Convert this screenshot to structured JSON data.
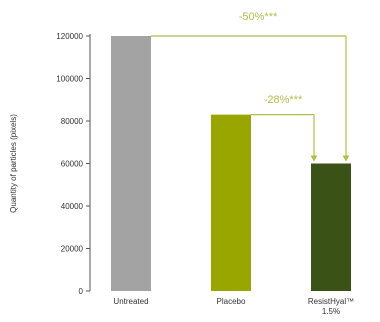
{
  "chart_data": {
    "type": "bar",
    "ylabel": "Quantity of particles (pixels)",
    "ylim": [
      0,
      120000
    ],
    "yticks": [
      0,
      20000,
      40000,
      60000,
      80000,
      100000,
      120000
    ],
    "categories": [
      "Untreated",
      "Placebo",
      "ResistHyal™ 1.5%"
    ],
    "values": [
      120000,
      83000,
      60000
    ],
    "colors": [
      "#a3a3a3",
      "#99a600",
      "#3b5217"
    ],
    "grid": false,
    "annotations": [
      {
        "text": "-50%***",
        "from_category": 0,
        "to_category": 2,
        "color": "#b4bc4a"
      },
      {
        "text": "-28%***",
        "from_category": 1,
        "to_category": 2,
        "color": "#b4bc4a"
      }
    ]
  }
}
